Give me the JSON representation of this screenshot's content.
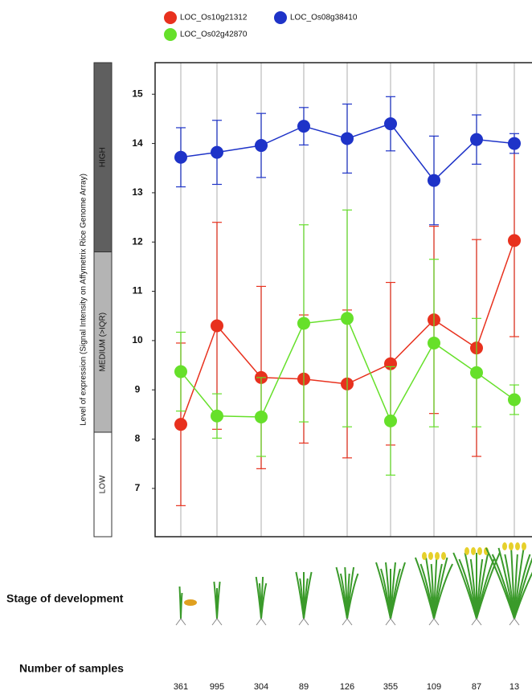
{
  "chart_data": {
    "type": "line",
    "y_label": "Level of expression (Signal Intensity on Affymetrix Rice Genome Array)",
    "categories": [
      null,
      null,
      null,
      null,
      null,
      null,
      null,
      null,
      null
    ],
    "ylim": [
      6.02,
      15.64
    ],
    "yticks": [
      7,
      8,
      9,
      10,
      11,
      12,
      13,
      14,
      15
    ],
    "grid": true,
    "expression_bands": [
      {
        "label": "HIGH",
        "from": 11.8,
        "to": 15.64,
        "color": "#5f5f5f"
      },
      {
        "label": "MEDIUM (>IQR)",
        "from": 8.14,
        "to": 11.8,
        "color": "#b4b4b4"
      },
      {
        "label": "LOW",
        "from": 6.02,
        "to": 8.14,
        "color": "#ffffff"
      }
    ],
    "series": [
      {
        "name": "LOC_Os10g21312",
        "color": "#e8311e",
        "values": [
          8.3,
          10.3,
          9.25,
          9.22,
          9.12,
          9.53,
          10.42,
          9.85,
          12.03
        ],
        "errors": [
          1.65,
          2.1,
          1.85,
          1.3,
          1.5,
          1.65,
          1.9,
          2.2,
          1.95
        ]
      },
      {
        "name": "LOC_Os08g38410",
        "color": "#1e33c8",
        "values": [
          13.72,
          13.82,
          13.96,
          14.35,
          14.1,
          14.4,
          13.25,
          14.08,
          14.0
        ],
        "errors": [
          0.6,
          0.65,
          0.65,
          0.38,
          0.7,
          0.55,
          0.9,
          0.5,
          0.2
        ]
      },
      {
        "name": "LOC_Os02g42870",
        "color": "#66e02a",
        "values": [
          9.37,
          8.47,
          8.45,
          10.35,
          10.45,
          8.37,
          9.95,
          9.35,
          8.8
        ],
        "errors": [
          0.8,
          0.45,
          0.8,
          2.0,
          2.2,
          1.1,
          1.7,
          1.1,
          0.3
        ]
      }
    ],
    "stage_label": "Stage of development",
    "samples_label": "Number of samples",
    "sample_counts": [
      361,
      995,
      304,
      89,
      126,
      355,
      109,
      87,
      13
    ]
  }
}
